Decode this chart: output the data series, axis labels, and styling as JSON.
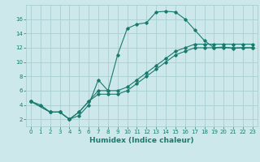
{
  "title": "",
  "xlabel": "Humidex (Indice chaleur)",
  "ylabel": "",
  "background_color": "#cce8ea",
  "grid_color": "#aacfd2",
  "line_color": "#1a7a6e",
  "xlim": [
    -0.5,
    23.5
  ],
  "ylim": [
    1,
    18
  ],
  "xticks": [
    0,
    1,
    2,
    3,
    4,
    5,
    6,
    7,
    8,
    9,
    10,
    11,
    12,
    13,
    14,
    15,
    16,
    17,
    18,
    19,
    20,
    21,
    22,
    23
  ],
  "yticks": [
    2,
    4,
    6,
    8,
    10,
    12,
    14,
    16
  ],
  "series": [
    {
      "x": [
        0,
        1,
        2,
        3,
        4,
        5,
        6,
        7,
        8,
        9,
        10,
        11,
        12,
        13,
        14,
        15,
        16,
        17,
        18,
        19,
        20,
        21,
        22,
        23
      ],
      "y": [
        4.5,
        4.0,
        3.0,
        3.0,
        2.0,
        2.5,
        4.0,
        7.5,
        6.0,
        11.0,
        14.7,
        15.3,
        15.5,
        17.0,
        17.1,
        17.0,
        16.0,
        14.5,
        13.0,
        12.0,
        12.1,
        11.9,
        12.0,
        12.0
      ]
    },
    {
      "x": [
        0,
        2,
        3,
        4,
        5,
        6,
        7,
        8,
        9,
        10,
        11,
        12,
        13,
        14,
        15,
        16,
        17,
        18,
        19,
        20,
        21,
        22,
        23
      ],
      "y": [
        4.5,
        3.0,
        3.0,
        2.0,
        3.0,
        4.5,
        5.5,
        5.5,
        5.5,
        6.0,
        7.0,
        8.0,
        9.0,
        10.0,
        11.0,
        11.5,
        12.0,
        12.0,
        12.0,
        12.0,
        12.0,
        12.0,
        12.0
      ]
    },
    {
      "x": [
        0,
        2,
        3,
        4,
        5,
        6,
        7,
        8,
        9,
        10,
        11,
        12,
        13,
        14,
        15,
        16,
        17,
        18,
        19,
        20,
        21,
        22,
        23
      ],
      "y": [
        4.5,
        3.0,
        3.0,
        2.0,
        3.0,
        4.5,
        6.0,
        6.0,
        6.0,
        6.5,
        7.5,
        8.5,
        9.5,
        10.5,
        11.5,
        12.0,
        12.5,
        12.5,
        12.5,
        12.5,
        12.5,
        12.5,
        12.5
      ]
    }
  ]
}
